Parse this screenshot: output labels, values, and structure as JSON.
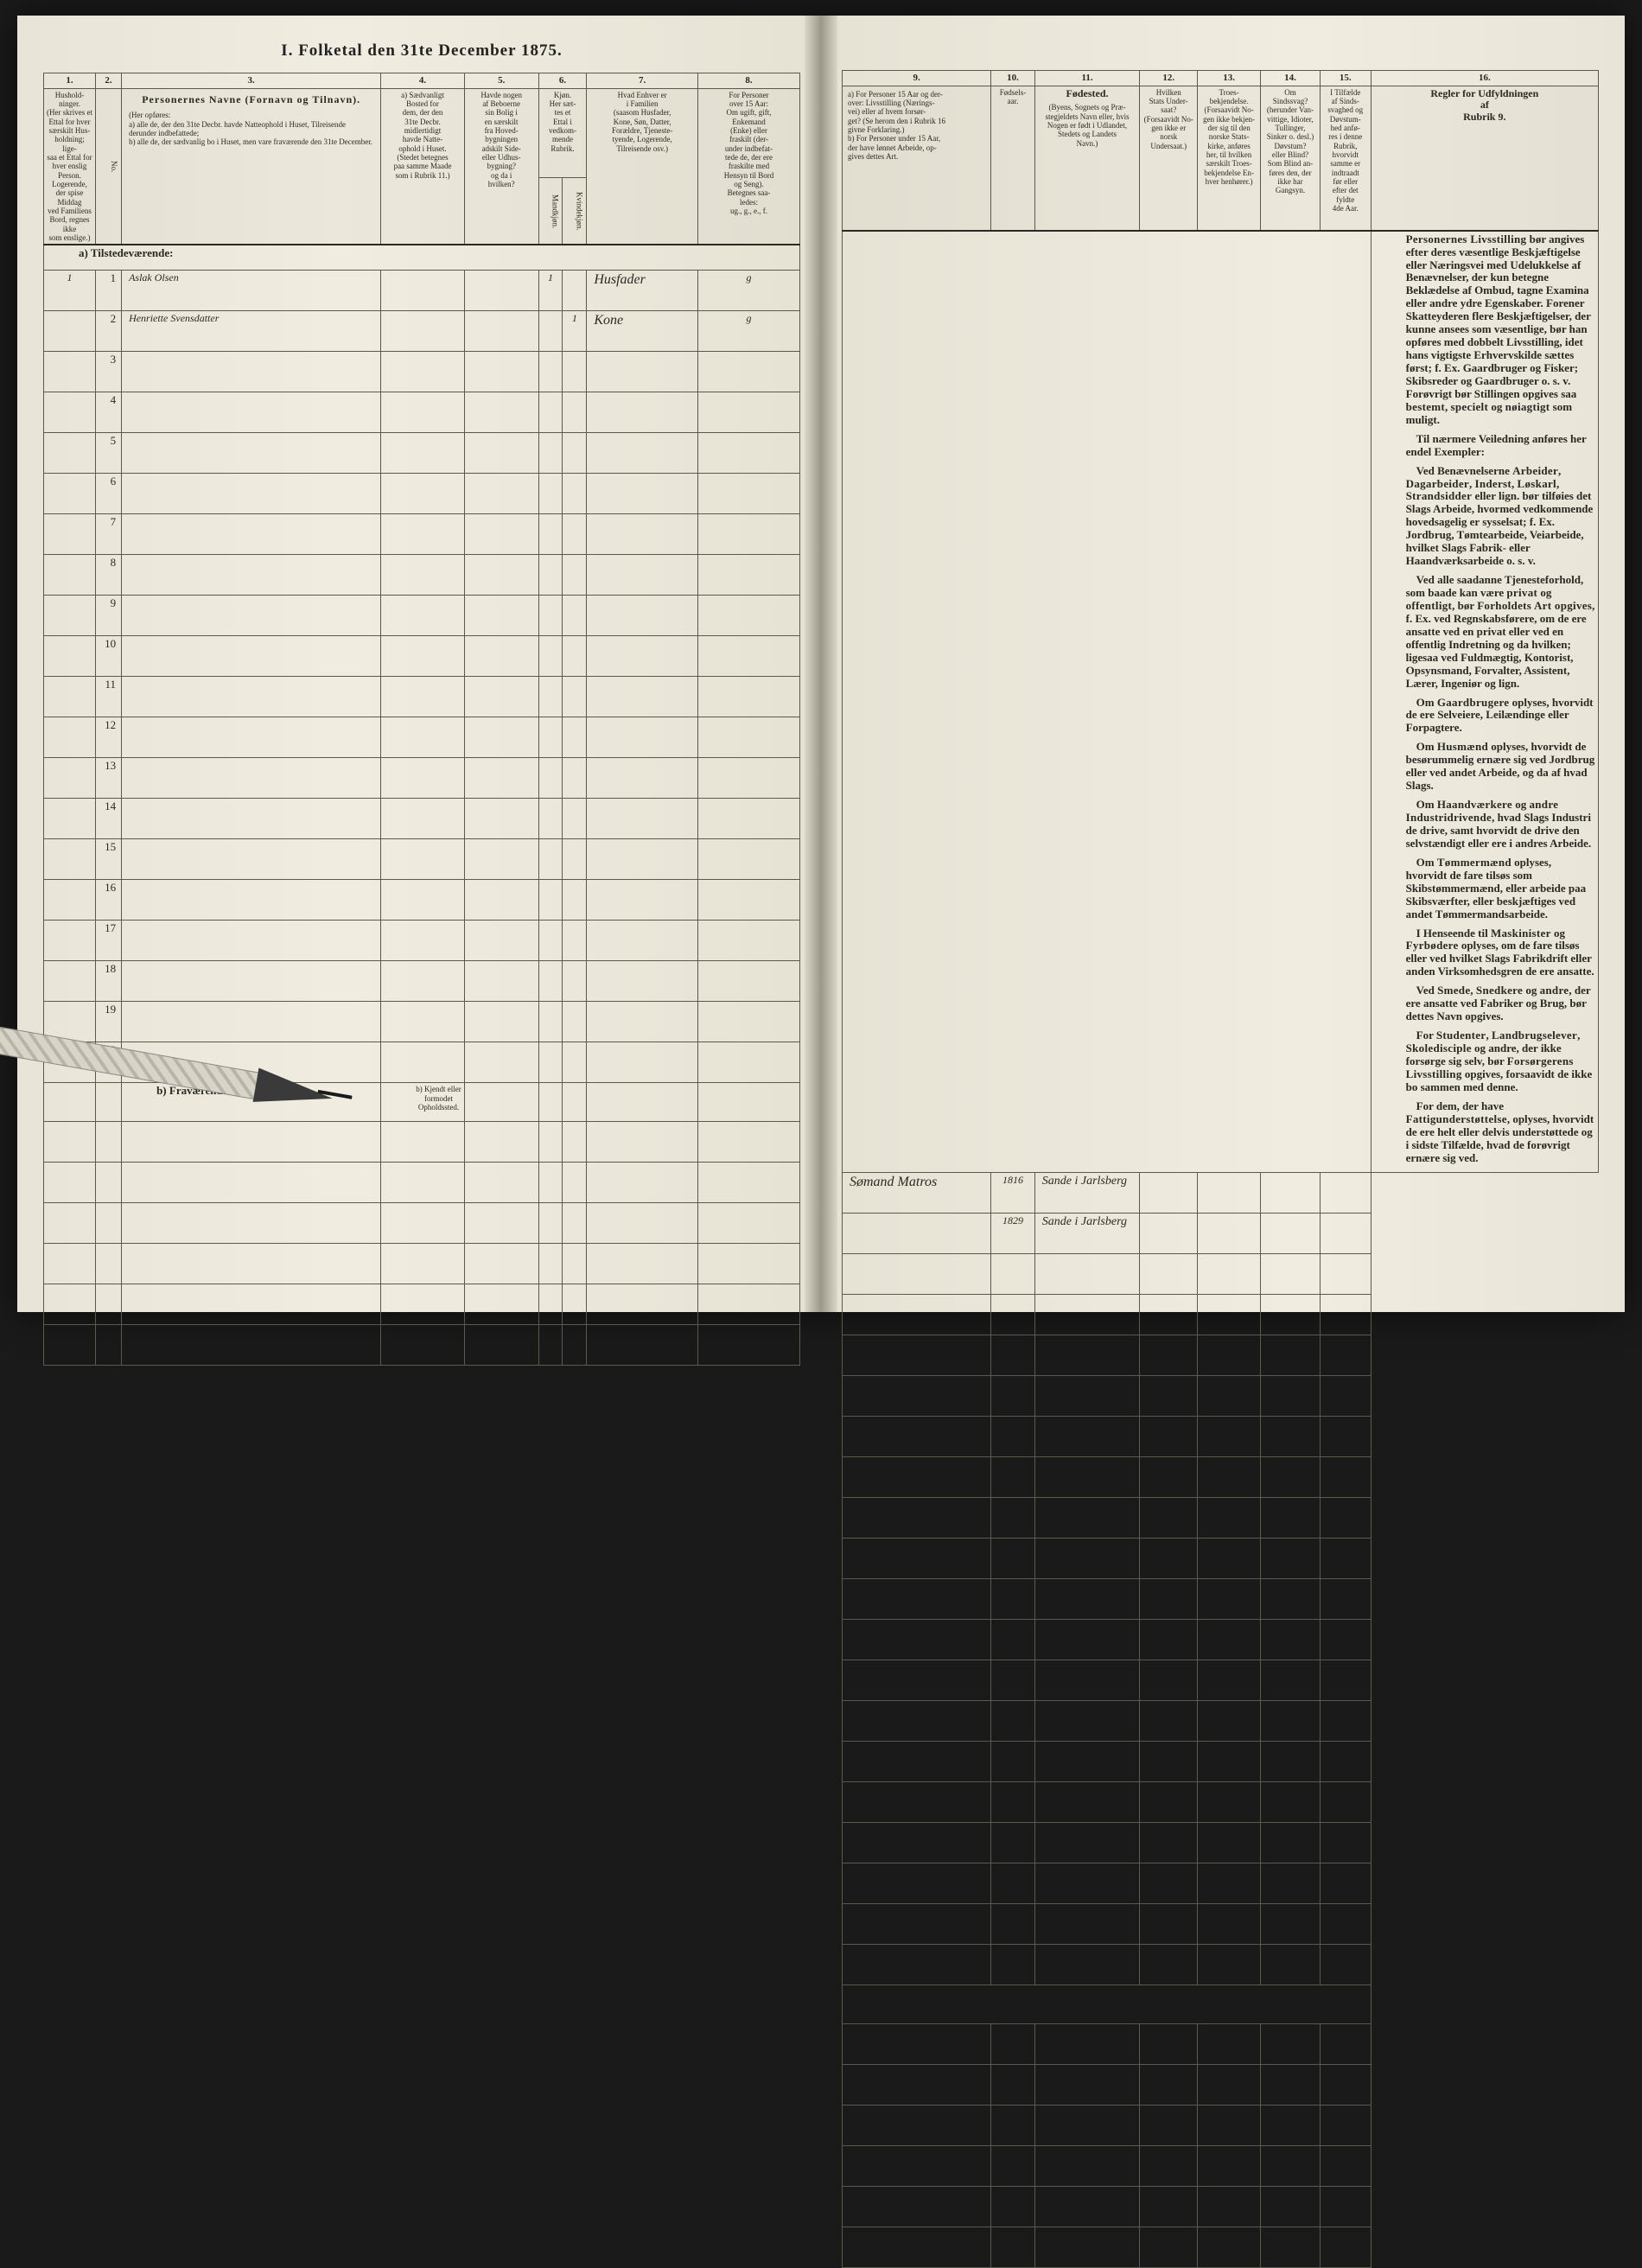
{
  "title": "I.  Folketal den 31te December 1875.",
  "columns_left": {
    "c1": "1.",
    "c2": "2.",
    "c3": "3.",
    "c4": "4.",
    "c5": "5.",
    "c6": "6.",
    "c7": "7.",
    "c8": "8."
  },
  "columns_right": {
    "c9": "9.",
    "c10": "10.",
    "c11": "11.",
    "c12": "12.",
    "c13": "13.",
    "c14": "14.",
    "c15": "15.",
    "c16": "16."
  },
  "headers_left": {
    "h1": "Hushold-\nninger.\n(Her skrives et\nEttal for hver\nsærskilt Hus-\nholdning; lige-\nsaa et Ettal for\nhver enslig\nPerson.\nLogerende,\nder spise Middag\nved Familiens\nBord, regnes ikke\nsom enslige.)",
    "h2": "No.",
    "h3_title": "Personernes Navne (Fornavn og Tilnavn).",
    "h3_sub": "(Her opføres:\na) alle de, der den 31te Decbr. havde Natteophold i Huset, Tilreisende derunder indbefattede;\nb) alle de, der sædvanlig bo i Huset, men vare fraværende den 31te December.",
    "h4": "a) Sædvanligt\nBosted for\ndem, der den\n31te Decbr.\nmidlertidigt\nhavde Natte-\nophold i Huset.\n(Stedet betegnes\npaa samme Maade\nsom i Rubrik 11.)",
    "h5": "Havde nogen\naf Beboerne\nsin Bolig i\nen særskilt\nfra Hoved-\nbygningen\nadskilt Side-\neller Udhus-\nbygning?\nog da i\nhvilken?",
    "h6": "Kjøn.\nHer sæt-\ntes et\nEttal i\nvedkom-\nmende\nRubrik.",
    "h6a": "Mandkjøn.",
    "h6b": "Kvindekjøn.",
    "h7": "Hvad Enhver er\ni Familien\n(saasom Husfader,\nKone, Søn, Datter,\nForældre, Tjeneste-\ntyende, Logerende,\nTilreisende osv.)",
    "h8": "For Personer\nover 15 Aar:\nOm ugift, gift,\nEnkemand\n(Enke) eller\nfraskilt (der-\nunder indbefat-\ntede de, der ere\nfraskilte med\nHensyn til Bord\nog Seng).\nBetegnes saa-\nledes:\nug., g., e., f."
  },
  "headers_right": {
    "h9": "a) For Personer 15 Aar og der-\nover: Livsstilling (Nærings-\nvei) eller af hvem forsør-\nget? (Se herom den i Rubrik 16\ngivne Forklaring.)\nb) For Personer under 15 Aar,\nder have lønnet Arbeide, op-\ngives dettes Art.",
    "h10": "Fødsels-\naar.",
    "h11_title": "Fødested.",
    "h11_sub": "(Byens, Sognets og Præ-\nstegjeldets Navn eller, hvis\nNogen er født i Udlandet,\nStedets og Landets\nNavn.)",
    "h12": "Hvilken\nStats Under-\nsaat?\n(Forsaavidt No-\ngen ikke er\nnorsk\nUndersaat.)",
    "h13": "Troes-\nbekjendelse.\n(Forsaavidt No-\ngen ikke bekjen-\nder sig til den\nnorske Stats-\nkirke, anføres\nher, til hvilken\nsærskilt Troes-\nbekjendelse En-\nhver henhører.)",
    "h14": "Om\nSindssvag?\n(herunder Van-\nvittige, Idioter,\nTullinger,\nSinker o. desl.)\nDøvstum?\neller Blind?\nSom Blind an-\nføres den, der\nikke har\nGangsyn.",
    "h15": "I Tilfælde\naf Sinds-\nsvaghed og\nDøvstum-\nhed anfø-\nres i denne\nRubrik,\nhvorvidt\nsamme er\nindtraadt\nfør eller\nefter det\nfyldte\n4de Aar.",
    "h16": "Regler for Udfyldningen\naf\nRubrik 9."
  },
  "section_a": "a)  Tilstedeværende:",
  "section_b": "b)  Fraværende:",
  "section_b4": "b) Kjendt eller\nformodet\nOpholdssted.",
  "rows": [
    {
      "n": "1",
      "hh": "1",
      "name": "Aslak Olsen",
      "c6a": "1",
      "c6b": "",
      "c7": "Husfader",
      "c8": "g",
      "c9": "Sømand Matros",
      "c10": "1816",
      "c11": "Sande i Jarlsberg"
    },
    {
      "n": "2",
      "hh": "",
      "name": "Henriette Svensdatter",
      "c6a": "",
      "c6b": "1",
      "c7": "Kone",
      "c8": "g",
      "c9": "",
      "c10": "1829",
      "c11": "Sande i Jarlsberg"
    },
    {
      "n": "3"
    },
    {
      "n": "4"
    },
    {
      "n": "5"
    },
    {
      "n": "6"
    },
    {
      "n": "7"
    },
    {
      "n": "8"
    },
    {
      "n": "9"
    },
    {
      "n": "10"
    },
    {
      "n": "11"
    },
    {
      "n": "12"
    },
    {
      "n": "13"
    },
    {
      "n": "14"
    },
    {
      "n": "15"
    },
    {
      "n": "16"
    },
    {
      "n": "17"
    },
    {
      "n": "18"
    },
    {
      "n": "19"
    },
    {
      "n": "20"
    }
  ],
  "blank_rows": [
    "",
    "",
    "",
    "",
    "",
    ""
  ],
  "rules_title": "Personernes Livsstilling",
  "rules_paragraphs": [
    "bør angives efter deres væsentlige Beskjæftigelse eller Næringsvei med Udelukkelse af Benævnelser, der kun betegne Beklædelse af Ombud, tagne Examina eller andre ydre Egenskaber.  Forener Skatteyderen flere Beskjæftigelser, der kunne ansees som væsentlige, bør han opføres med dobbelt Livsstilling, idet hans vigtigste Erhvervskilde sættes først; f. Ex. Gaardbruger og Fisker; Skibsreder og Gaardbruger o. s. v.  Forøvrigt bør Stillingen opgives saa <b>bestemt</b>, <b>specielt</b> og <b>nøiagtigt</b> som muligt.",
    "Til nærmere Veiledning anføres her endel Exempler:",
    "Ved Benævnelserne <b>Arbeider</b>, <b>Dagarbeider</b>, <b>Inderst</b>, <b>Løskarl</b>, <b>Strandsidder</b> eller lign. bør tilføies det Slags Arbeide, hvormed vedkommende hovedsagelig er sysselsat; f. Ex. Jordbrug, Tømtearbeide, Veiarbeide, hvilket Slags Fabrik- eller Haandværksarbeide o. s. v.",
    "Ved alle saadanne Tjenesteforhold, som baade kan være <b>privat</b> og <b>offentligt</b>, bør <b>Forholdets Art opgives</b>, f. Ex. ved Regnskabsførere, om de ere ansatte ved en privat eller ved en offentlig Indretning og da hvilken; ligesaa ved Fuldmægtig, Kontorist, Opsynsmand, Forvalter, Assistent, Lærer, Ingeniør og lign.",
    "Om <b>Gaardbrugere</b> oplyses, hvorvidt de ere Selveiere, Leilændinge eller Forpagtere.",
    "Om <b>Husmænd</b> oplyses, hvorvidt de besørummelig ernære sig ved Jordbrug eller ved andet Arbeide, og da af hvad Slags.",
    "Om <b>Haandværkere</b> og <b>andre Industridrivende</b>, hvad Slags Industri de drive, samt hvorvidt de drive den selvstændigt eller ere i andres Arbeide.",
    "Om <b>Tømmermænd</b> oplyses, hvorvidt de fare tilsøs som Skibstømmermænd, eller arbeide paa Skibsværfter, eller beskjæftiges ved andet Tømmermandsarbeide.",
    "I Henseende til <b>Maskinister</b> og <b>Fyrbødere</b> oplyses, om de fare tilsøs eller ved hvilket Slags Fabrikdrift eller anden Virksomhedsgren de ere ansatte.",
    "Ved <b>Smede</b>, <b>Snedkere</b> og <b>andre</b>, der ere ansatte ved Fabriker og Brug, bør dettes Navn opgives.",
    "For <b>Studenter</b>, <b>Landbrugselever</b>, <b>Skoledisciple</b> og andre, der ikke forsørge sig selv, bør <b>Forsørgerens Livsstilling</b> opgives, forsaavidt de ikke bo sammen med denne.",
    "For dem, der have <b>Fattigunderstøttelse</b>, oplyses, hvorvidt de ere helt eller delvis understøttede og i sidste Tilfælde, hvad de forøvrigt ernære sig ved."
  ],
  "colors": {
    "paper": "#ece8dc",
    "ink": "#2a2a22",
    "rule": "#5a5a4a",
    "handwriting": "#4a4a52"
  }
}
